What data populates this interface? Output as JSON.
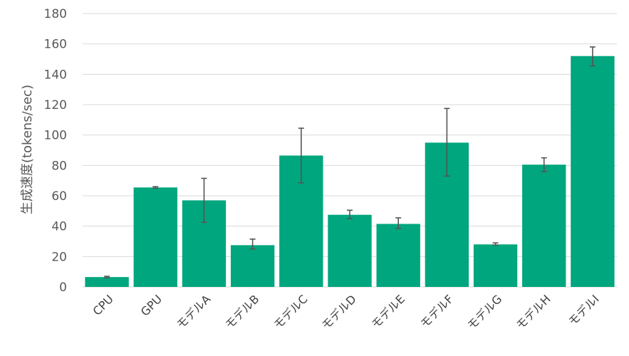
{
  "chart_data": {
    "type": "bar",
    "ylabel": "生成速度(tokens/sec)",
    "xlabel": "",
    "ylim": [
      0,
      180
    ],
    "yticks": [
      0,
      20,
      40,
      60,
      80,
      100,
      120,
      140,
      160,
      180
    ],
    "grid": true,
    "bar_color": "#00a67e",
    "error_bar_color": "#555555",
    "categories": [
      "CPU",
      "GPU",
      "モデルA",
      "モデルB",
      "モデルC",
      "モデルD",
      "モデルE",
      "モデルF",
      "モデルG",
      "モデルH",
      "モデルI"
    ],
    "values": [
      6.5,
      65.5,
      57,
      27.5,
      86.5,
      47.5,
      41.5,
      95,
      28,
      80.5,
      152
    ],
    "error_low": [
      6,
      65,
      42.5,
      25,
      68.5,
      45,
      38.5,
      73,
      27.5,
      76,
      145.5
    ],
    "error_high": [
      7,
      66,
      71.5,
      31.5,
      104.5,
      50.5,
      45.5,
      117.5,
      29,
      85,
      158
    ]
  }
}
